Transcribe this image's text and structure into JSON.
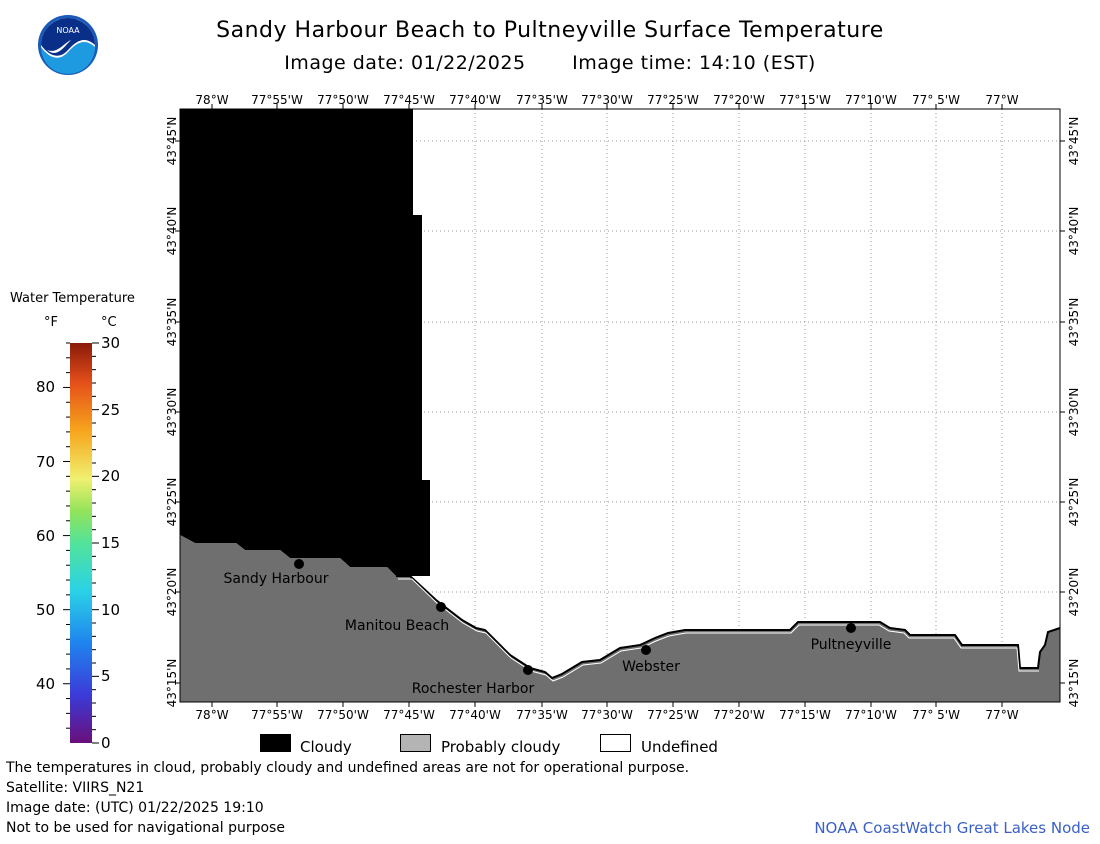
{
  "header": {
    "title": "Sandy Harbour Beach to Pultneyville Surface Temperature",
    "image_date": "Image date: 01/22/2025",
    "image_time": "Image time: 14:10 (EST)",
    "logo_text": "NOAA"
  },
  "map": {
    "lon_labels": [
      "78°W",
      "77°55'W",
      "77°50'W",
      "77°45'W",
      "77°40'W",
      "77°35'W",
      "77°30'W",
      "77°25'W",
      "77°20'W",
      "77°15'W",
      "77°10'W",
      "77° 5'W",
      "77°W"
    ],
    "lat_labels": [
      "43°45'N",
      "43°40'N",
      "43°35'N",
      "43°30'N",
      "43°25'N",
      "43°20'N",
      "43°15'N"
    ],
    "places": [
      {
        "name": "Sandy Harbour"
      },
      {
        "name": "Manitou Beach"
      },
      {
        "name": "Rochester Harbor"
      },
      {
        "name": "Webster"
      },
      {
        "name": "Pultneyville"
      }
    ]
  },
  "colorbar": {
    "title": "Water Temperature",
    "unit_f": "°F",
    "unit_c": "°C",
    "f_ticks": [
      "80",
      "70",
      "60",
      "50",
      "40"
    ],
    "c_ticks": [
      "30",
      "25",
      "20",
      "15",
      "10",
      "5",
      "0"
    ]
  },
  "legend": {
    "cloudy": "Cloudy",
    "probably_cloudy": "Probably cloudy",
    "undefined": "Undefined",
    "colors": {
      "cloudy": "#000000",
      "probably_cloudy": "#b4b4b4",
      "undefined": "#ffffff",
      "land": "#6f6f6f"
    }
  },
  "footer": {
    "disclaimer": "The temperatures in cloud, probably cloudy and undefined areas are not for operational purpose.",
    "satellite": "Satellite: VIIRS_N21",
    "utc_date": "Image date: (UTC) 01/22/2025  19:10",
    "nav_warning": "Not to be used for navigational purpose",
    "credit": "NOAA CoastWatch Great Lakes Node"
  }
}
